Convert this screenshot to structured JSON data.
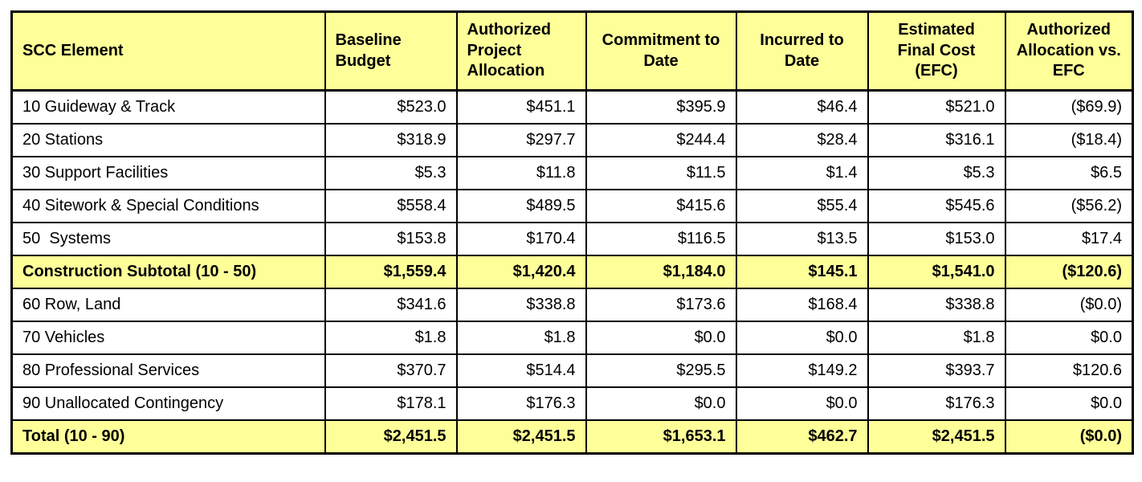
{
  "colors": {
    "header_bg": "#FFFF99",
    "emphasis_row_bg": "#FFFF99",
    "border": "#000000",
    "text": "#000000",
    "page_bg": "#FFFFFF"
  },
  "chart_data": {
    "type": "table",
    "title": "",
    "legend_position": "none",
    "grid": "all-borders",
    "columns": [
      {
        "label": "SCC Element",
        "align": "left"
      },
      {
        "label": "Baseline Budget",
        "align": "left"
      },
      {
        "label": "Authorized Project Allocation",
        "align": "left"
      },
      {
        "label": "Commitment to Date",
        "align": "center"
      },
      {
        "label": "Incurred to Date",
        "align": "center"
      },
      {
        "label": "Estimated Final Cost (EFC)",
        "align": "center"
      },
      {
        "label": "Authorized Allocation vs. EFC",
        "align": "center"
      }
    ],
    "rows": [
      {
        "label": "10 Guideway & Track",
        "values": [
          "$523.0",
          "$451.1",
          "$395.9",
          "$46.4",
          "$521.0",
          "($69.9)"
        ],
        "emphasis": false
      },
      {
        "label": "20 Stations",
        "values": [
          "$318.9",
          "$297.7",
          "$244.4",
          "$28.4",
          "$316.1",
          "($18.4)"
        ],
        "emphasis": false
      },
      {
        "label": "30 Support Facilities",
        "values": [
          "$5.3",
          "$11.8",
          "$11.5",
          "$1.4",
          "$5.3",
          "$6.5"
        ],
        "emphasis": false
      },
      {
        "label": "40 Sitework & Special Conditions",
        "values": [
          "$558.4",
          "$489.5",
          "$415.6",
          "$55.4",
          "$545.6",
          "($56.2)"
        ],
        "emphasis": false
      },
      {
        "label": "50  Systems",
        "values": [
          "$153.8",
          "$170.4",
          "$116.5",
          "$13.5",
          "$153.0",
          "$17.4"
        ],
        "emphasis": false
      },
      {
        "label": "Construction Subtotal (10 - 50)",
        "values": [
          "$1,559.4",
          "$1,420.4",
          "$1,184.0",
          "$145.1",
          "$1,541.0",
          "($120.6)"
        ],
        "emphasis": true
      },
      {
        "label": "60 Row, Land",
        "values": [
          "$341.6",
          "$338.8",
          "$173.6",
          "$168.4",
          "$338.8",
          "($0.0)"
        ],
        "emphasis": false
      },
      {
        "label": "70 Vehicles",
        "values": [
          "$1.8",
          "$1.8",
          "$0.0",
          "$0.0",
          "$1.8",
          "$0.0"
        ],
        "emphasis": false
      },
      {
        "label": "80 Professional Services",
        "values": [
          "$370.7",
          "$514.4",
          "$295.5",
          "$149.2",
          "$393.7",
          "$120.6"
        ],
        "emphasis": false
      },
      {
        "label": "90 Unallocated Contingency",
        "values": [
          "$178.1",
          "$176.3",
          "$0.0",
          "$0.0",
          "$176.3",
          "$0.0"
        ],
        "emphasis": false
      },
      {
        "label": "Total (10 - 90)",
        "values": [
          "$2,451.5",
          "$2,451.5",
          "$1,653.1",
          "$462.7",
          "$2,451.5",
          "($0.0)"
        ],
        "emphasis": true
      }
    ]
  }
}
